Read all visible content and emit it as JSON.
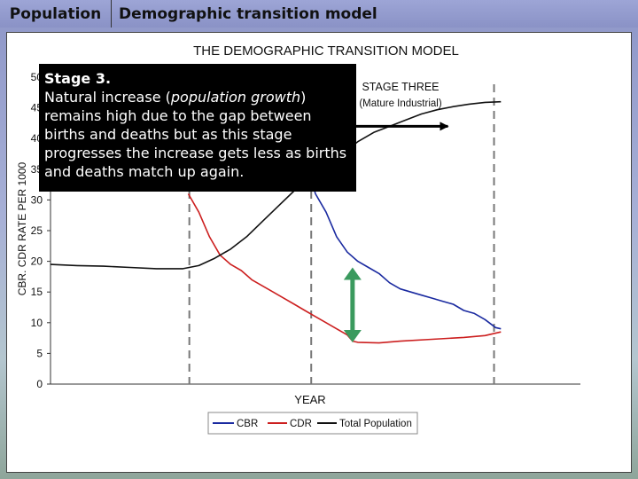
{
  "header": {
    "section": "Population",
    "title": "Demographic transition model"
  },
  "callout": {
    "heading": "Stage 3.",
    "text_before": "Natural increase (",
    "text_italic": "population growth",
    "text_after": ") remains high due to the gap between births and deaths but as this stage progresses the increase gets less as births and deaths match up again."
  },
  "chart_data": {
    "type": "line",
    "title": "THE DEMOGRAPHIC TRANSITION MODEL",
    "xlabel": "YEAR",
    "ylabel": "CBR. CDR RATE PER 1000",
    "ylim": [
      0,
      50
    ],
    "yticks": [
      "0",
      "5",
      "10",
      "15",
      "20",
      "25",
      "30",
      "35",
      "40",
      "45",
      "50"
    ],
    "grid": false,
    "legend_position": "bottom",
    "stage_label": {
      "line1": "STAGE THREE",
      "line2": "(Mature Industrial)"
    },
    "stage_boundaries": [
      0.262,
      0.492,
      0.837
    ],
    "series": [
      {
        "name": "CBR",
        "color": "#1a2aa0",
        "points": [
          [
            0.35,
            38
          ],
          [
            0.37,
            35
          ],
          [
            0.39,
            37
          ],
          [
            0.41,
            34.5
          ],
          [
            0.43,
            36
          ],
          [
            0.45,
            34
          ],
          [
            0.47,
            35.5
          ],
          [
            0.49,
            34
          ],
          [
            0.5,
            31
          ],
          [
            0.52,
            28
          ],
          [
            0.54,
            24
          ],
          [
            0.56,
            21.5
          ],
          [
            0.58,
            20
          ],
          [
            0.6,
            19
          ],
          [
            0.62,
            18
          ],
          [
            0.64,
            16.5
          ],
          [
            0.66,
            15.5
          ],
          [
            0.68,
            15
          ],
          [
            0.7,
            14.5
          ],
          [
            0.72,
            14
          ],
          [
            0.74,
            13.5
          ],
          [
            0.76,
            13
          ],
          [
            0.78,
            12
          ],
          [
            0.8,
            11.5
          ],
          [
            0.82,
            10.5
          ],
          [
            0.84,
            9.2
          ],
          [
            0.85,
            9.0
          ]
        ]
      },
      {
        "name": "CDR",
        "color": "#cc1f1f",
        "points": [
          [
            0.26,
            31
          ],
          [
            0.28,
            28
          ],
          [
            0.3,
            24
          ],
          [
            0.32,
            21
          ],
          [
            0.34,
            19.5
          ],
          [
            0.36,
            18.5
          ],
          [
            0.38,
            17
          ],
          [
            0.4,
            16
          ],
          [
            0.42,
            15
          ],
          [
            0.44,
            14
          ],
          [
            0.46,
            13
          ],
          [
            0.48,
            12
          ],
          [
            0.5,
            11
          ],
          [
            0.52,
            10
          ],
          [
            0.54,
            9
          ],
          [
            0.56,
            8
          ],
          [
            0.57,
            7
          ],
          [
            0.58,
            6.8
          ],
          [
            0.62,
            6.7
          ],
          [
            0.66,
            7.0
          ],
          [
            0.72,
            7.3
          ],
          [
            0.78,
            7.6
          ],
          [
            0.82,
            7.9
          ],
          [
            0.85,
            8.5
          ]
        ]
      },
      {
        "name": "Total Population",
        "color": "#111111",
        "points": [
          [
            0.0,
            19.5
          ],
          [
            0.05,
            19.3
          ],
          [
            0.1,
            19.2
          ],
          [
            0.15,
            19.0
          ],
          [
            0.2,
            18.8
          ],
          [
            0.25,
            18.8
          ],
          [
            0.28,
            19.3
          ],
          [
            0.31,
            20.5
          ],
          [
            0.34,
            22.0
          ],
          [
            0.37,
            24.0
          ],
          [
            0.4,
            26.5
          ],
          [
            0.43,
            29.0
          ],
          [
            0.46,
            31.5
          ],
          [
            0.49,
            33.5
          ],
          [
            0.52,
            35.5
          ],
          [
            0.55,
            37.5
          ],
          [
            0.58,
            39.5
          ],
          [
            0.61,
            41.0
          ],
          [
            0.64,
            42.0
          ],
          [
            0.67,
            43.0
          ],
          [
            0.7,
            44.0
          ],
          [
            0.73,
            44.7
          ],
          [
            0.76,
            45.2
          ],
          [
            0.79,
            45.6
          ],
          [
            0.82,
            45.9
          ],
          [
            0.85,
            46.0
          ]
        ]
      }
    ],
    "annotations": {
      "gap_arrow": {
        "x": 0.57,
        "y_top": 19,
        "y_bottom": 6.8,
        "color": "#3a9a5e"
      },
      "stage_arrow": {
        "x_start": 0.57,
        "x_end": 0.75,
        "y": 42
      }
    }
  }
}
